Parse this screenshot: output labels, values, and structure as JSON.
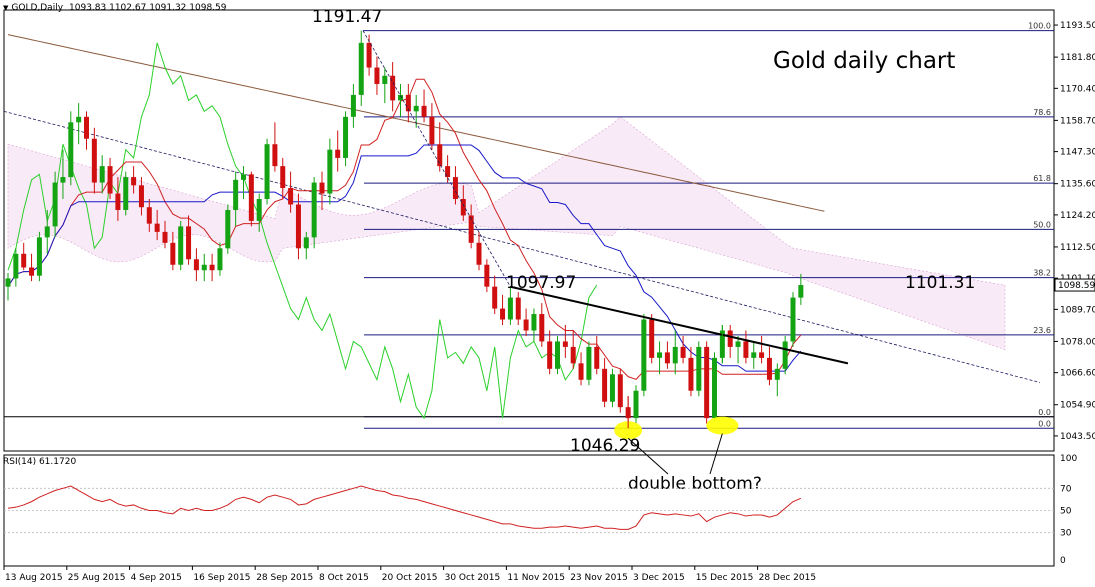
{
  "header": {
    "symbol_timeframe": "GOLD,Daily",
    "ohlc": "1093.83 1102.67 1091.32 1098.59"
  },
  "rsi_header": {
    "label": "RSI(14) 61.1720"
  },
  "colors": {
    "bull_candle": "#13a313",
    "bear_candle": "#d01010",
    "tenkan": "#d02020",
    "kijun": "#1818c8",
    "chikou": "#2ad02a",
    "sma": "#8b5a3c",
    "fib": "#1a1a80",
    "rsi": "#d02020",
    "highlight": "#ffff00"
  },
  "chart_data": [
    {
      "type": "candlestick",
      "title": "Gold daily chart",
      "ylim": [
        1038,
        1199
      ],
      "y_ticks": [
        "1193.50",
        "1181.80",
        "1170.40",
        "1158.70",
        "1147.30",
        "1135.60",
        "1124.20",
        "1112.50",
        "1101.10",
        "1089.70",
        "1078.00",
        "1066.60",
        "1054.90",
        "1043.50"
      ],
      "x_tick_labels": [
        "13 Aug 2015",
        "25 Aug 2015",
        "4 Sep 2015",
        "16 Sep 2015",
        "28 Sep 2015",
        "8 Oct 2015",
        "20 Oct 2015",
        "30 Oct 2015",
        "11 Nov 2015",
        "23 Nov 2015",
        "3 Dec 2015",
        "15 Dec 2015",
        "28 Dec 2015"
      ],
      "last_price_label": "1098.59",
      "candles": [
        [
          1098,
          1103,
          1093,
          1101
        ],
        [
          1101,
          1112,
          1098,
          1110
        ],
        [
          1110,
          1114,
          1104,
          1105
        ],
        [
          1105,
          1110,
          1100,
          1102
        ],
        [
          1102,
          1118,
          1100,
          1116
        ],
        [
          1116,
          1126,
          1110,
          1120
        ],
        [
          1120,
          1140,
          1116,
          1136
        ],
        [
          1136,
          1148,
          1130,
          1138
        ],
        [
          1138,
          1162,
          1135,
          1158
        ],
        [
          1158,
          1165,
          1150,
          1160
        ],
        [
          1160,
          1162,
          1148,
          1152
        ],
        [
          1152,
          1156,
          1132,
          1136
        ],
        [
          1136,
          1146,
          1132,
          1142
        ],
        [
          1142,
          1145,
          1130,
          1132
        ],
        [
          1132,
          1138,
          1122,
          1126
        ],
        [
          1126,
          1140,
          1124,
          1138
        ],
        [
          1138,
          1142,
          1132,
          1135
        ],
        [
          1135,
          1138,
          1124,
          1127
        ],
        [
          1127,
          1130,
          1118,
          1121
        ],
        [
          1121,
          1126,
          1115,
          1118
        ],
        [
          1118,
          1122,
          1112,
          1114
        ],
        [
          1114,
          1118,
          1104,
          1106
        ],
        [
          1106,
          1122,
          1104,
          1120
        ],
        [
          1120,
          1124,
          1106,
          1108
        ],
        [
          1108,
          1112,
          1100,
          1104
        ],
        [
          1104,
          1110,
          1100,
          1106
        ],
        [
          1106,
          1110,
          1100,
          1104
        ],
        [
          1104,
          1114,
          1102,
          1112
        ],
        [
          1112,
          1128,
          1110,
          1126
        ],
        [
          1126,
          1140,
          1120,
          1137
        ],
        [
          1137,
          1142,
          1130,
          1139
        ],
        [
          1139,
          1140,
          1120,
          1122
        ],
        [
          1122,
          1132,
          1118,
          1130
        ],
        [
          1130,
          1152,
          1128,
          1150
        ],
        [
          1150,
          1158,
          1140,
          1142
        ],
        [
          1142,
          1145,
          1130,
          1134
        ],
        [
          1134,
          1140,
          1125,
          1128
        ],
        [
          1128,
          1132,
          1108,
          1112
        ],
        [
          1112,
          1118,
          1108,
          1116
        ],
        [
          1116,
          1138,
          1112,
          1136
        ],
        [
          1136,
          1140,
          1126,
          1132
        ],
        [
          1132,
          1152,
          1128,
          1148
        ],
        [
          1148,
          1155,
          1140,
          1145
        ],
        [
          1145,
          1162,
          1142,
          1160
        ],
        [
          1160,
          1172,
          1156,
          1168
        ],
        [
          1168,
          1191.47,
          1164,
          1187
        ],
        [
          1187,
          1190,
          1175,
          1178
        ],
        [
          1178,
          1182,
          1168,
          1172
        ],
        [
          1172,
          1178,
          1165,
          1175
        ],
        [
          1175,
          1180,
          1162,
          1166
        ],
        [
          1166,
          1172,
          1160,
          1168
        ],
        [
          1168,
          1172,
          1158,
          1162
        ],
        [
          1162,
          1168,
          1156,
          1164
        ],
        [
          1164,
          1170,
          1158,
          1160
        ],
        [
          1160,
          1165,
          1148,
          1150
        ],
        [
          1150,
          1158,
          1140,
          1142
        ],
        [
          1142,
          1146,
          1136,
          1138
        ],
        [
          1138,
          1142,
          1128,
          1130
        ],
        [
          1130,
          1135,
          1122,
          1124
        ],
        [
          1124,
          1128,
          1112,
          1114
        ],
        [
          1114,
          1118,
          1104,
          1106
        ],
        [
          1106,
          1108,
          1096,
          1098
        ],
        [
          1098,
          1102,
          1088,
          1090
        ],
        [
          1090,
          1095,
          1084,
          1086
        ],
        [
          1086,
          1097.97,
          1084,
          1094
        ],
        [
          1094,
          1096,
          1084,
          1086
        ],
        [
          1086,
          1090,
          1080,
          1082
        ],
        [
          1082,
          1090,
          1078,
          1088
        ],
        [
          1088,
          1092,
          1076,
          1078
        ],
        [
          1078,
          1082,
          1066,
          1068
        ],
        [
          1068,
          1080,
          1066,
          1078
        ],
        [
          1078,
          1084,
          1072,
          1076
        ],
        [
          1076,
          1082,
          1068,
          1070
        ],
        [
          1070,
          1074,
          1062,
          1064
        ],
        [
          1064,
          1078,
          1062,
          1076
        ],
        [
          1076,
          1080,
          1066,
          1068
        ],
        [
          1068,
          1072,
          1054,
          1056
        ],
        [
          1056,
          1068,
          1054,
          1066
        ],
        [
          1066,
          1068,
          1052,
          1054
        ],
        [
          1054,
          1058,
          1046.29,
          1050
        ],
        [
          1050,
          1062,
          1048,
          1060
        ],
        [
          1060,
          1088,
          1058,
          1086
        ],
        [
          1086,
          1088,
          1070,
          1072
        ],
        [
          1072,
          1078,
          1066,
          1074
        ],
        [
          1074,
          1078,
          1068,
          1070
        ],
        [
          1070,
          1082,
          1066,
          1076
        ],
        [
          1076,
          1080,
          1070,
          1072
        ],
        [
          1072,
          1076,
          1058,
          1060
        ],
        [
          1060,
          1078,
          1058,
          1076
        ],
        [
          1076,
          1078,
          1048,
          1050
        ],
        [
          1050,
          1074,
          1049,
          1072
        ],
        [
          1072,
          1084,
          1070,
          1082
        ],
        [
          1082,
          1084,
          1072,
          1076
        ],
        [
          1076,
          1080,
          1070,
          1078
        ],
        [
          1078,
          1082,
          1070,
          1072
        ],
        [
          1072,
          1078,
          1068,
          1074
        ],
        [
          1074,
          1080,
          1070,
          1072
        ],
        [
          1072,
          1076,
          1062,
          1064
        ],
        [
          1064,
          1070,
          1058,
          1068
        ],
        [
          1068,
          1080,
          1066,
          1078
        ],
        [
          1078,
          1096,
          1076,
          1094
        ],
        [
          1094,
          1102.67,
          1091.32,
          1098.59
        ]
      ],
      "sma": [
        1175,
        1170,
        1165,
        1160,
        1155,
        1150,
        1145,
        1140,
        1135,
        1130
      ],
      "fibonacci": [
        {
          "label": "100.0",
          "value": 1191.47
        },
        {
          "label": "78.6",
          "value": 1160
        },
        {
          "label": "61.8",
          "value": 1135.8
        },
        {
          "label": "50.0",
          "value": 1118.9
        },
        {
          "label": "38.2",
          "value": 1101.31
        },
        {
          "label": "23.6",
          "value": 1080.4
        },
        {
          "label": "0.0",
          "value": 1050.5
        },
        {
          "label": "0.0",
          "value": 1046.29
        }
      ],
      "annotations": [
        {
          "text": "1191.47",
          "value": 1191.47
        },
        {
          "text": "1097.97",
          "value": 1097.97
        },
        {
          "text": "1101.31",
          "value": 1101.31
        },
        {
          "text": "1046.29",
          "value": 1046.29
        },
        {
          "text": "double bottom?"
        }
      ],
      "trendline": {
        "from": [
          64,
          1097.97
        ],
        "to": [
          107,
          1070
        ]
      },
      "legend": "none",
      "grid": false
    },
    {
      "type": "line",
      "title": "RSI(14) 61.1720",
      "ylim": [
        0,
        100
      ],
      "y_ticks": [
        "100",
        "70",
        "50",
        "30",
        "0"
      ],
      "values": [
        52,
        53,
        55,
        58,
        62,
        65,
        68,
        70,
        72,
        68,
        64,
        60,
        58,
        60,
        56,
        54,
        55,
        52,
        50,
        50,
        48,
        47,
        52,
        50,
        52,
        50,
        50,
        52,
        55,
        60,
        62,
        60,
        57,
        62,
        64,
        62,
        60,
        55,
        56,
        60,
        62,
        64,
        66,
        68,
        70,
        72,
        70,
        68,
        67,
        64,
        63,
        61,
        60,
        58,
        56,
        54,
        52,
        50,
        48,
        46,
        44,
        42,
        40,
        38,
        38,
        36,
        35,
        34,
        34,
        35,
        35,
        36,
        35,
        34,
        35,
        36,
        34,
        34,
        33,
        33,
        36,
        46,
        48,
        47,
        46,
        47,
        46,
        45,
        47,
        40,
        44,
        46,
        48,
        47,
        45,
        46,
        46,
        44,
        46,
        52,
        58,
        61
      ]
    }
  ]
}
